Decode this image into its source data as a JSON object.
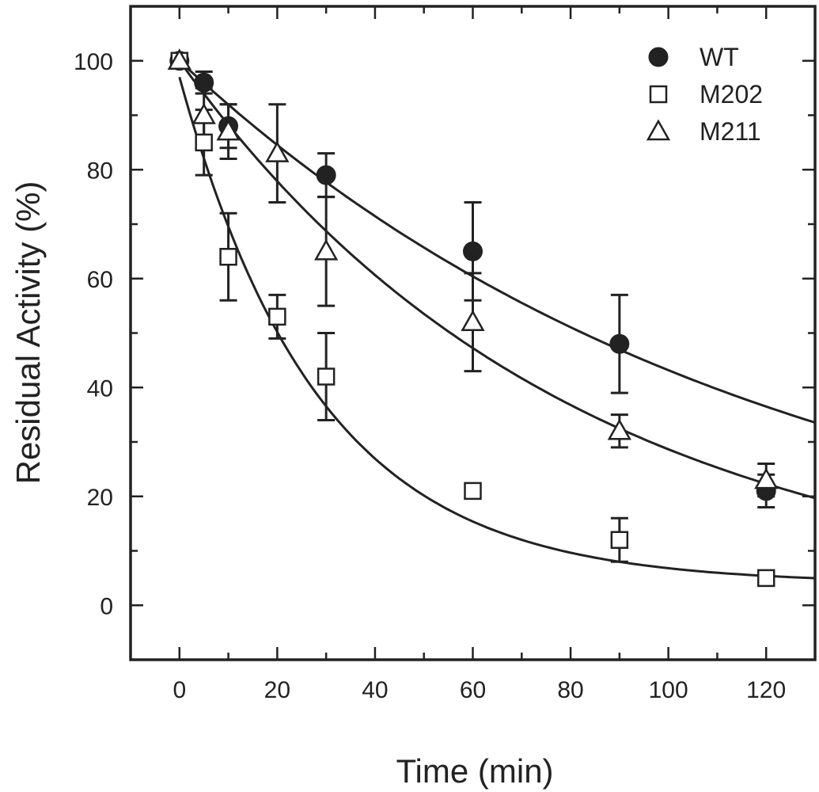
{
  "chart_data": {
    "type": "scatter",
    "xlabel": "Time (min)",
    "ylabel": "Residual Activity (%)",
    "xlim": [
      -10,
      130
    ],
    "ylim": [
      -10,
      110
    ],
    "xticks": [
      0,
      20,
      40,
      60,
      80,
      100,
      120
    ],
    "yticks": [
      0,
      20,
      40,
      60,
      80,
      100
    ],
    "legend_position": "top-right",
    "grid": false,
    "colors": {
      "axis": "#222222",
      "marker": "#222222",
      "background": "#ffffff"
    },
    "series": [
      {
        "name": "WT",
        "marker": "filled-circle",
        "x": [
          0,
          5,
          10,
          30,
          60,
          90,
          120
        ],
        "y": [
          100,
          96,
          88,
          79,
          65,
          48,
          21
        ],
        "error": [
          0,
          2,
          4,
          4,
          9,
          9,
          3
        ],
        "fit": {
          "model": "exponential-decay",
          "y0": 100,
          "k": 0.0084
        }
      },
      {
        "name": "M202",
        "marker": "open-square",
        "x": [
          0,
          5,
          10,
          20,
          30,
          60,
          90,
          120
        ],
        "y": [
          100,
          85,
          64,
          53,
          42,
          21,
          12,
          5
        ],
        "error": [
          0,
          6,
          8,
          4,
          8,
          1,
          4,
          1
        ],
        "fit": {
          "model": "exponential-decay-plateau",
          "y0": 97,
          "k": 0.035,
          "plateau": 4
        }
      },
      {
        "name": "M211",
        "marker": "open-triangle",
        "x": [
          0,
          5,
          10,
          20,
          30,
          60,
          90,
          120
        ],
        "y": [
          100,
          90,
          87,
          83,
          65,
          52,
          32,
          23
        ],
        "error": [
          0,
          5,
          5,
          9,
          10,
          9,
          3,
          3
        ],
        "fit": {
          "model": "exponential-decay",
          "y0": 100,
          "k": 0.0125
        }
      }
    ]
  }
}
